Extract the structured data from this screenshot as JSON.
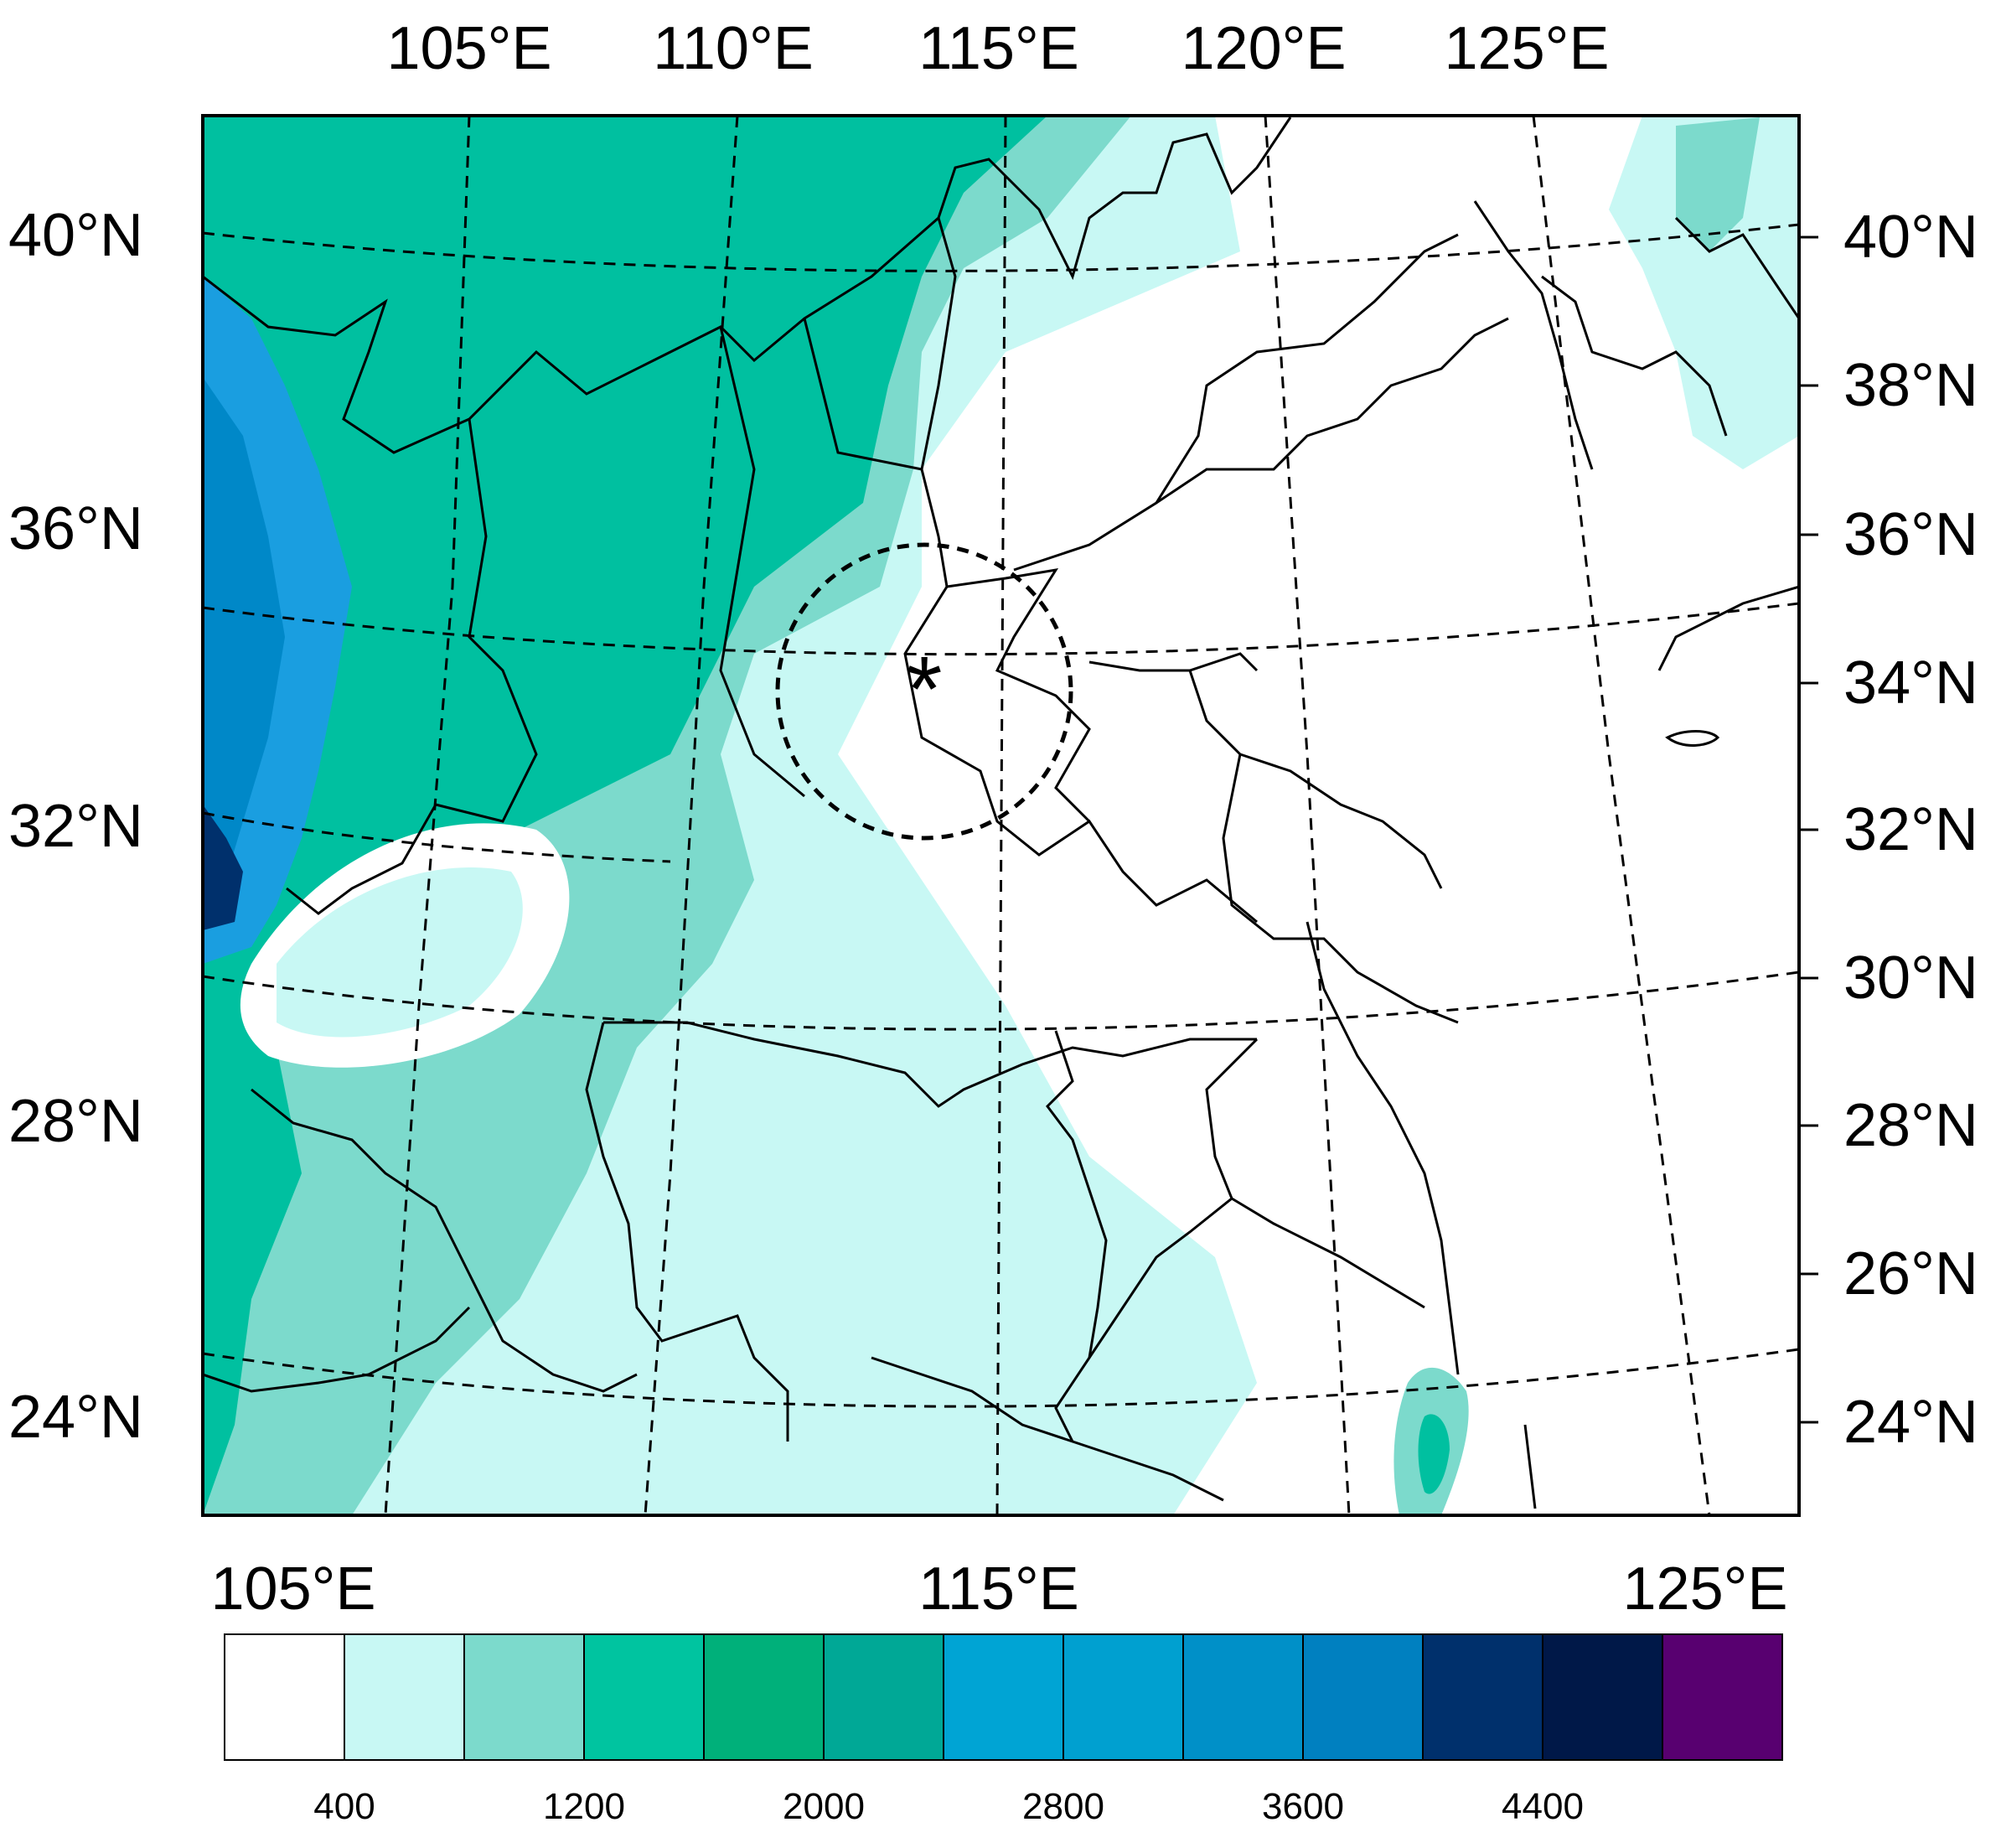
{
  "map": {
    "top_lon_labels": [
      "105°E",
      "110°E",
      "115°E",
      "120°E",
      "125°E"
    ],
    "left_lat_labels": [
      "40°N",
      "36°N",
      "32°N",
      "28°N",
      "24°N"
    ],
    "right_lat_labels": [
      "40°N",
      "38°N",
      "36°N",
      "34°N",
      "32°N",
      "30°N",
      "28°N",
      "26°N",
      "24°N"
    ],
    "bottom_lon_labels": [
      "105°E",
      "115°E",
      "125°E"
    ],
    "marker_symbol": "*",
    "colors": {
      "lowland": "#ffffff",
      "hills": "#c8f8f4",
      "highland": "#7cdacc",
      "mountains": "#00c0a0",
      "plateau": "#1a9ee0"
    }
  },
  "colorbar": {
    "colors": [
      "#ffffff",
      "#c8f8f4",
      "#7cdacc",
      "#00c4a0",
      "#00b07a",
      "#00a896",
      "#00a4d4",
      "#00a0d0",
      "#0090c8",
      "#0080c0",
      "#00306c",
      "#001848",
      "#580070"
    ],
    "labels": [
      "400",
      "1200",
      "2000",
      "2800",
      "3600",
      "4400"
    ]
  }
}
